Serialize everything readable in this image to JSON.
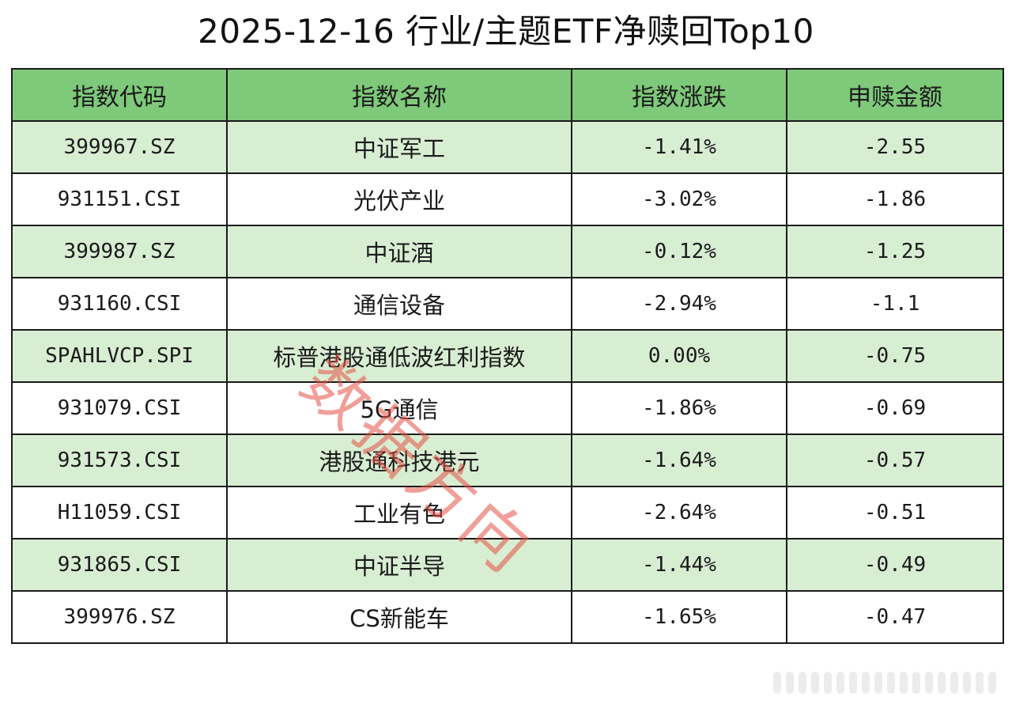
{
  "title": "2025-12-16 行业/主题ETF净赎回Top10",
  "table": {
    "headers": [
      "指数代码",
      "指数名称",
      "指数涨跌",
      "申赎金额"
    ],
    "rows": [
      {
        "code": "399967.SZ",
        "name": "中证军工",
        "change": "-1.41%",
        "amount": "-2.55"
      },
      {
        "code": "931151.CSI",
        "name": "光伏产业",
        "change": "-3.02%",
        "amount": "-1.86"
      },
      {
        "code": "399987.SZ",
        "name": "中证酒",
        "change": "-0.12%",
        "amount": "-1.25"
      },
      {
        "code": "931160.CSI",
        "name": "通信设备",
        "change": "-2.94%",
        "amount": "-1.1"
      },
      {
        "code": "SPAHLVCP.SPI",
        "name": "标普港股通低波红利指数",
        "change": "0.00%",
        "amount": "-0.75"
      },
      {
        "code": "931079.CSI",
        "name": "5G通信",
        "change": "-1.86%",
        "amount": "-0.69"
      },
      {
        "code": "931573.CSI",
        "name": "港股通科技港元",
        "change": "-1.64%",
        "amount": "-0.57"
      },
      {
        "code": "H11059.CSI",
        "name": "工业有色",
        "change": "-2.64%",
        "amount": "-0.51"
      },
      {
        "code": "931865.CSI",
        "name": "中证半导",
        "change": "-1.44%",
        "amount": "-0.49"
      },
      {
        "code": "399976.SZ",
        "name": "CS新能车",
        "change": "-1.65%",
        "amount": "-0.47"
      }
    ]
  },
  "watermark": "数据方向",
  "colors": {
    "header_bg": "#7fc97a",
    "stripe_bg": "#d8eed3",
    "watermark": "#e65046"
  }
}
